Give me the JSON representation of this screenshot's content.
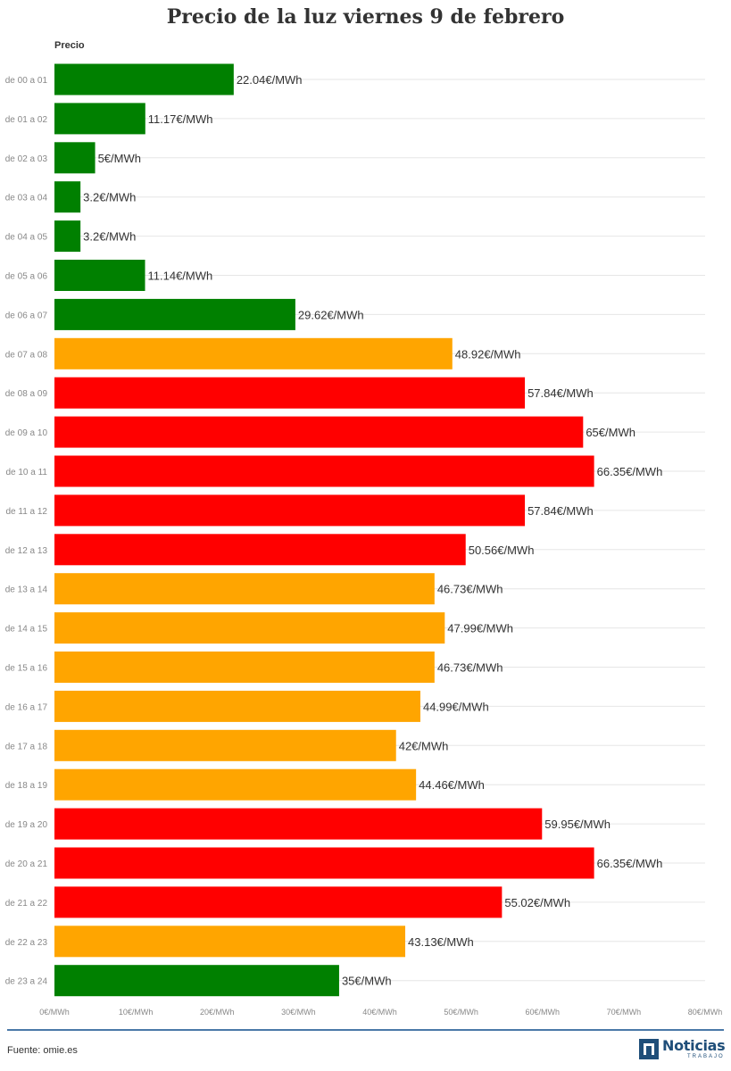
{
  "header": {
    "title": "Precio de la luz viernes 9 de febrero"
  },
  "chart_data": {
    "type": "bar",
    "orientation": "horizontal",
    "title": "Precio de la luz viernes 9 de febrero",
    "series_label": "Precio",
    "categories": [
      "de 00 a 01",
      "de 01 a 02",
      "de 02 a 03",
      "de 03 a 04",
      "de 04 a 05",
      "de 05 a 06",
      "de 06 a 07",
      "de 07 a 08",
      "de 08 a 09",
      "de 09 a 10",
      "de 10 a 11",
      "de 11 a 12",
      "de 12 a 13",
      "de 13 a 14",
      "de 14 a 15",
      "de 15 a 16",
      "de 16 a 17",
      "de 17 a 18",
      "de 18 a 19",
      "de 19 a 20",
      "de 20 a 21",
      "de 21 a 22",
      "de 22 a 23",
      "de 23 a 24"
    ],
    "values": [
      22.04,
      11.17,
      5,
      3.2,
      3.2,
      11.14,
      29.62,
      48.92,
      57.84,
      65,
      66.35,
      57.84,
      50.56,
      46.73,
      47.99,
      46.73,
      44.99,
      42,
      44.46,
      59.95,
      66.35,
      55.02,
      43.13,
      35
    ],
    "value_labels": [
      "22.04€/MWh",
      "11.17€/MWh",
      "5€/MWh",
      "3.2€/MWh",
      "3.2€/MWh",
      "11.14€/MWh",
      "29.62€/MWh",
      "48.92€/MWh",
      "57.84€/MWh",
      "65€/MWh",
      "66.35€/MWh",
      "57.84€/MWh",
      "50.56€/MWh",
      "46.73€/MWh",
      "47.99€/MWh",
      "46.73€/MWh",
      "44.99€/MWh",
      "42€/MWh",
      "44.46€/MWh",
      "59.95€/MWh",
      "66.35€/MWh",
      "55.02€/MWh",
      "43.13€/MWh",
      "35€/MWh"
    ],
    "bar_colors": [
      "#008000",
      "#008000",
      "#008000",
      "#008000",
      "#008000",
      "#008000",
      "#008000",
      "#ffa500",
      "#ff0000",
      "#ff0000",
      "#ff0000",
      "#ff0000",
      "#ff0000",
      "#ffa500",
      "#ffa500",
      "#ffa500",
      "#ffa500",
      "#ffa500",
      "#ffa500",
      "#ff0000",
      "#ff0000",
      "#ff0000",
      "#ffa500",
      "#008000"
    ],
    "x_ticks": [
      0,
      10,
      20,
      30,
      40,
      50,
      60,
      70,
      80
    ],
    "x_tick_labels": [
      "0€/MWh",
      "10€/MWh",
      "20€/MWh",
      "30€/MWh",
      "40€/MWh",
      "50€/MWh",
      "60€/MWh",
      "70€/MWh",
      "80€/MWh"
    ],
    "xlim": [
      0,
      80
    ],
    "grid": true
  },
  "footer": {
    "source": "Fuente: omie.es",
    "logo_text": "Noticias",
    "logo_subtext": "TRABAJO"
  },
  "colors": {
    "green": "#008000",
    "orange": "#ffa500",
    "red": "#ff0000",
    "brand": "#1f4e79"
  }
}
